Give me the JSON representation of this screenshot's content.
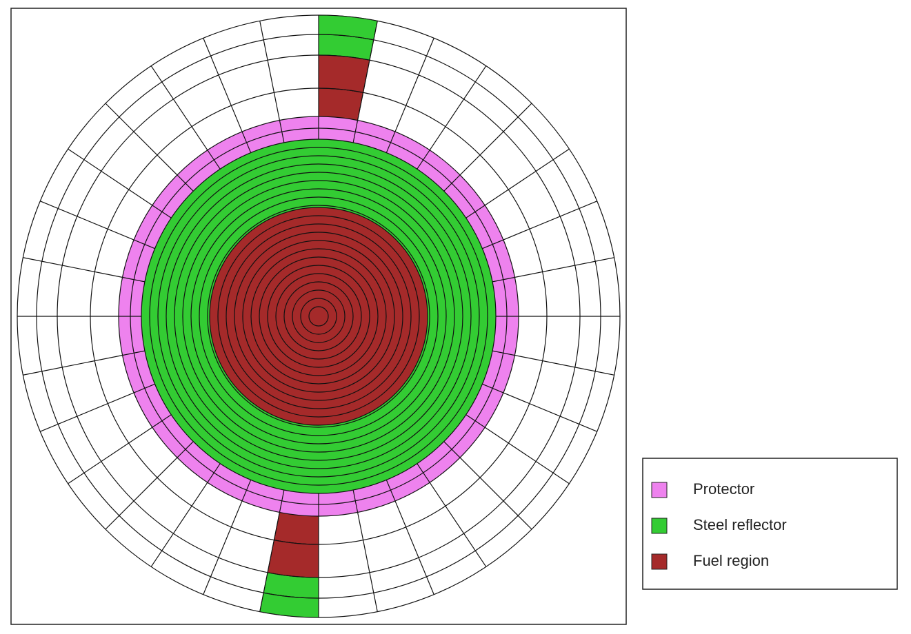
{
  "legend": {
    "items": [
      {
        "label": "Protector",
        "color": "#ee82ee"
      },
      {
        "label": "Steel reflector",
        "color": "#33cc33"
      },
      {
        "label": "Fuel region",
        "color": "#a52a2a"
      }
    ]
  }
}
